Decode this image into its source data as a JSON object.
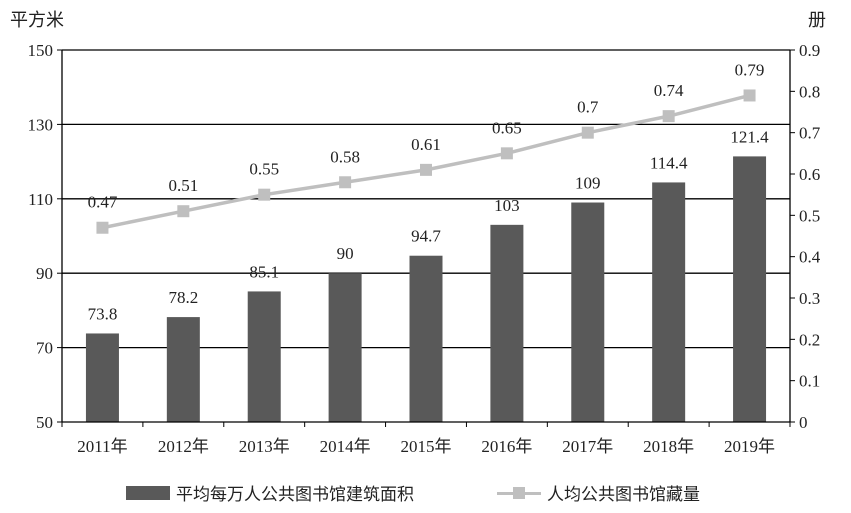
{
  "chart_data": {
    "type": "bar",
    "categories": [
      "2011年",
      "2012年",
      "2013年",
      "2014年",
      "2015年",
      "2016年",
      "2017年",
      "2018年",
      "2019年"
    ],
    "left_axis_unit": "平方米",
    "right_axis_unit": "册",
    "ylim_left": [
      50,
      150
    ],
    "yticks_left": [
      50,
      70,
      90,
      110,
      130,
      150
    ],
    "ylim_right": [
      0,
      0.9
    ],
    "yticks_right": [
      "0",
      "0.1",
      "0.2",
      "0.3",
      "0.4",
      "0.5",
      "0.6",
      "0.7",
      "0.8",
      "0.9"
    ],
    "gridlines": [
      70,
      90,
      110,
      130
    ],
    "series": [
      {
        "name": "平均每万人公共图书馆建筑面积",
        "type": "bar",
        "axis": "left",
        "color": "#595959",
        "values": [
          73.8,
          78.2,
          85.1,
          90,
          94.7,
          103,
          109,
          114.4,
          121.4
        ],
        "labels": [
          "73.8",
          "78.2",
          "85.1",
          "90",
          "94.7",
          "103",
          "109",
          "114.4",
          "121.4"
        ]
      },
      {
        "name": "人均公共图书馆藏量",
        "type": "line",
        "axis": "right",
        "color": "#bfbfbf",
        "marker": "square",
        "values": [
          0.47,
          0.51,
          0.55,
          0.58,
          0.61,
          0.65,
          0.7,
          0.74,
          0.79
        ],
        "labels": [
          "0.47",
          "0.51",
          "0.55",
          "0.58",
          "0.61",
          "0.65",
          "0.7",
          "0.74",
          "0.79"
        ]
      }
    ],
    "legend_position": "bottom"
  }
}
